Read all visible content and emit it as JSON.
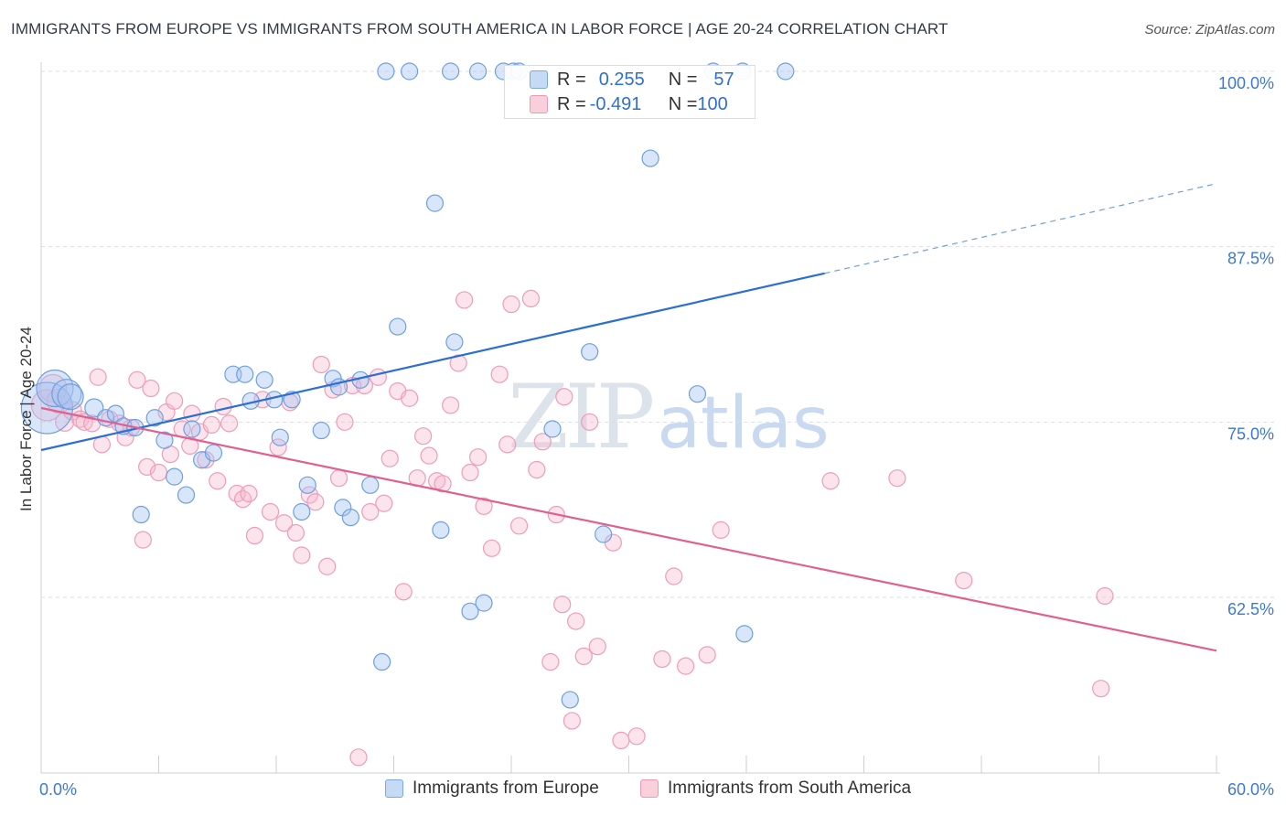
{
  "header": {
    "title": "IMMIGRANTS FROM EUROPE VS IMMIGRANTS FROM SOUTH AMERICA IN LABOR FORCE | AGE 20-24 CORRELATION CHART",
    "source": "Source: ZipAtlas.com"
  },
  "watermark": {
    "zip": "ZIP",
    "atlas": "atlas"
  },
  "stats": {
    "rows": [
      {
        "r_label": "R = ",
        "r_value": "0.255",
        "n_label": "N = ",
        "n_value": "57"
      },
      {
        "r_label": "R = ",
        "r_value": "-0.491",
        "n_label": "N = ",
        "n_value": "100"
      }
    ]
  },
  "legend": {
    "europe": "Immigrants from Europe",
    "south_america": "Immigrants from South America"
  },
  "chart_data": {
    "type": "scatter",
    "title": "IMMIGRANTS FROM EUROPE VS IMMIGRANTS FROM SOUTH AMERICA IN LABOR FORCE | AGE 20-24 CORRELATION CHART",
    "xlabel": "",
    "ylabel": "In Labor Force | Age 20-24",
    "xlim": [
      0,
      60
    ],
    "ylim": [
      51,
      101.5
    ],
    "x_tick_labels": [
      "0.0%",
      "60.0%"
    ],
    "y_ticks": [
      62.5,
      75.0,
      87.5,
      100.0
    ],
    "y_tick_labels": [
      "62.5%",
      "75.0%",
      "87.5%",
      "100.0%"
    ],
    "grid": true,
    "legend_position": "bottom",
    "colors": {
      "europe": "#6fa3e6",
      "south_america": "#ee93b1",
      "europe_line": "#2a6fd1",
      "south_america_line": "#e0608e",
      "tick_text": "#3e78d6"
    },
    "series": [
      {
        "name": "Immigrants from Europe",
        "trend": {
          "x": [
            0,
            40
          ],
          "y": [
            73.0,
            85.6
          ],
          "dashed_to": {
            "x": 60,
            "y": 92.0
          }
        },
        "points": [
          {
            "x": 0.3,
            "y": 76.0,
            "s": 28
          },
          {
            "x": 0.7,
            "y": 77.4,
            "s": 20
          },
          {
            "x": 1.3,
            "y": 77.0,
            "s": 16
          },
          {
            "x": 1.5,
            "y": 76.8,
            "s": 14
          },
          {
            "x": 2.7,
            "y": 76.0,
            "s": 10
          },
          {
            "x": 3.3,
            "y": 75.3,
            "s": 9
          },
          {
            "x": 3.8,
            "y": 75.6,
            "s": 9
          },
          {
            "x": 4.2,
            "y": 74.7,
            "s": 9
          },
          {
            "x": 4.8,
            "y": 74.6,
            "s": 9
          },
          {
            "x": 5.1,
            "y": 68.4,
            "s": 9
          },
          {
            "x": 5.8,
            "y": 75.3,
            "s": 9
          },
          {
            "x": 6.3,
            "y": 73.7,
            "s": 9
          },
          {
            "x": 6.8,
            "y": 71.1,
            "s": 9
          },
          {
            "x": 7.4,
            "y": 69.8,
            "s": 9
          },
          {
            "x": 7.7,
            "y": 74.5,
            "s": 9
          },
          {
            "x": 8.2,
            "y": 72.3,
            "s": 9
          },
          {
            "x": 8.8,
            "y": 72.8,
            "s": 9
          },
          {
            "x": 9.8,
            "y": 78.4,
            "s": 9
          },
          {
            "x": 10.4,
            "y": 78.4,
            "s": 9
          },
          {
            "x": 10.7,
            "y": 76.5,
            "s": 9
          },
          {
            "x": 11.4,
            "y": 78.0,
            "s": 9
          },
          {
            "x": 11.9,
            "y": 76.6,
            "s": 9
          },
          {
            "x": 12.2,
            "y": 73.9,
            "s": 9
          },
          {
            "x": 12.8,
            "y": 76.6,
            "s": 9
          },
          {
            "x": 13.3,
            "y": 68.6,
            "s": 9
          },
          {
            "x": 13.6,
            "y": 70.5,
            "s": 9
          },
          {
            "x": 14.3,
            "y": 74.4,
            "s": 9
          },
          {
            "x": 14.9,
            "y": 78.1,
            "s": 9
          },
          {
            "x": 15.2,
            "y": 77.5,
            "s": 9
          },
          {
            "x": 15.4,
            "y": 68.9,
            "s": 9
          },
          {
            "x": 15.8,
            "y": 68.2,
            "s": 9
          },
          {
            "x": 16.3,
            "y": 78.0,
            "s": 9
          },
          {
            "x": 16.8,
            "y": 70.5,
            "s": 9
          },
          {
            "x": 17.4,
            "y": 57.9,
            "s": 9
          },
          {
            "x": 18.2,
            "y": 81.8,
            "s": 9
          },
          {
            "x": 17.6,
            "y": 100.0,
            "s": 9
          },
          {
            "x": 18.8,
            "y": 100.0,
            "s": 9
          },
          {
            "x": 20.1,
            "y": 90.6,
            "s": 9
          },
          {
            "x": 20.4,
            "y": 67.3,
            "s": 9
          },
          {
            "x": 20.9,
            "y": 100.0,
            "s": 9
          },
          {
            "x": 21.1,
            "y": 80.7,
            "s": 9
          },
          {
            "x": 21.9,
            "y": 61.5,
            "s": 9
          },
          {
            "x": 22.3,
            "y": 100.0,
            "s": 9
          },
          {
            "x": 22.6,
            "y": 62.1,
            "s": 9
          },
          {
            "x": 23.6,
            "y": 100.0,
            "s": 9
          },
          {
            "x": 24.1,
            "y": 100.0,
            "s": 9
          },
          {
            "x": 24.4,
            "y": 100.0,
            "s": 9
          },
          {
            "x": 26.1,
            "y": 74.5,
            "s": 9
          },
          {
            "x": 27.0,
            "y": 55.2,
            "s": 9
          },
          {
            "x": 28.0,
            "y": 80.0,
            "s": 9
          },
          {
            "x": 28.7,
            "y": 67.0,
            "s": 9
          },
          {
            "x": 34.3,
            "y": 100.0,
            "s": 9
          },
          {
            "x": 35.8,
            "y": 100.0,
            "s": 9
          },
          {
            "x": 31.1,
            "y": 93.8,
            "s": 9
          },
          {
            "x": 33.5,
            "y": 77.0,
            "s": 9
          },
          {
            "x": 35.9,
            "y": 59.9,
            "s": 9
          },
          {
            "x": 38.0,
            "y": 100.0,
            "s": 9
          }
        ]
      },
      {
        "name": "Immigrants from South America",
        "trend": {
          "x": [
            0,
            60
          ],
          "y": [
            76.0,
            58.7
          ]
        },
        "points": [
          {
            "x": 0.3,
            "y": 76.2,
            "s": 17
          },
          {
            "x": 0.6,
            "y": 77.4,
            "s": 15
          },
          {
            "x": 0.9,
            "y": 76.5,
            "s": 13
          },
          {
            "x": 1.2,
            "y": 75.0,
            "s": 10
          },
          {
            "x": 1.6,
            "y": 75.8,
            "s": 10
          },
          {
            "x": 2.0,
            "y": 75.2,
            "s": 9
          },
          {
            "x": 2.2,
            "y": 75.0,
            "s": 9
          },
          {
            "x": 2.6,
            "y": 74.9,
            "s": 9
          },
          {
            "x": 2.9,
            "y": 78.2,
            "s": 9
          },
          {
            "x": 3.1,
            "y": 73.4,
            "s": 9
          },
          {
            "x": 3.5,
            "y": 75.2,
            "s": 9
          },
          {
            "x": 4.0,
            "y": 74.9,
            "s": 9
          },
          {
            "x": 4.3,
            "y": 73.9,
            "s": 9
          },
          {
            "x": 4.6,
            "y": 74.6,
            "s": 9
          },
          {
            "x": 4.9,
            "y": 78.0,
            "s": 9
          },
          {
            "x": 5.2,
            "y": 66.6,
            "s": 9
          },
          {
            "x": 5.6,
            "y": 77.4,
            "s": 9
          },
          {
            "x": 5.4,
            "y": 71.8,
            "s": 9
          },
          {
            "x": 6.0,
            "y": 71.4,
            "s": 9
          },
          {
            "x": 6.4,
            "y": 75.7,
            "s": 9
          },
          {
            "x": 6.6,
            "y": 72.7,
            "s": 9
          },
          {
            "x": 6.8,
            "y": 76.5,
            "s": 9
          },
          {
            "x": 7.2,
            "y": 74.5,
            "s": 9
          },
          {
            "x": 7.6,
            "y": 73.3,
            "s": 9
          },
          {
            "x": 7.7,
            "y": 75.6,
            "s": 9
          },
          {
            "x": 8.1,
            "y": 74.3,
            "s": 9
          },
          {
            "x": 8.4,
            "y": 72.3,
            "s": 9
          },
          {
            "x": 8.7,
            "y": 74.8,
            "s": 9
          },
          {
            "x": 9.0,
            "y": 70.8,
            "s": 9
          },
          {
            "x": 9.3,
            "y": 76.1,
            "s": 9
          },
          {
            "x": 9.6,
            "y": 74.9,
            "s": 9
          },
          {
            "x": 10.0,
            "y": 69.9,
            "s": 9
          },
          {
            "x": 10.3,
            "y": 69.5,
            "s": 9
          },
          {
            "x": 10.6,
            "y": 69.9,
            "s": 9
          },
          {
            "x": 10.9,
            "y": 66.9,
            "s": 9
          },
          {
            "x": 11.3,
            "y": 76.6,
            "s": 9
          },
          {
            "x": 11.7,
            "y": 68.6,
            "s": 9
          },
          {
            "x": 12.1,
            "y": 73.2,
            "s": 9
          },
          {
            "x": 12.4,
            "y": 67.8,
            "s": 9
          },
          {
            "x": 12.7,
            "y": 76.4,
            "s": 9
          },
          {
            "x": 13.0,
            "y": 67.1,
            "s": 9
          },
          {
            "x": 13.3,
            "y": 65.5,
            "s": 9
          },
          {
            "x": 13.7,
            "y": 69.8,
            "s": 9
          },
          {
            "x": 14.0,
            "y": 69.3,
            "s": 9
          },
          {
            "x": 14.3,
            "y": 79.1,
            "s": 9
          },
          {
            "x": 14.6,
            "y": 64.7,
            "s": 9
          },
          {
            "x": 14.9,
            "y": 77.3,
            "s": 9
          },
          {
            "x": 15.2,
            "y": 71.0,
            "s": 9
          },
          {
            "x": 15.5,
            "y": 75.0,
            "s": 9
          },
          {
            "x": 15.9,
            "y": 77.6,
            "s": 9
          },
          {
            "x": 16.2,
            "y": 51.1,
            "s": 9
          },
          {
            "x": 16.5,
            "y": 77.6,
            "s": 9
          },
          {
            "x": 16.8,
            "y": 68.6,
            "s": 9
          },
          {
            "x": 17.2,
            "y": 78.2,
            "s": 9
          },
          {
            "x": 17.5,
            "y": 69.2,
            "s": 9
          },
          {
            "x": 17.8,
            "y": 72.4,
            "s": 9
          },
          {
            "x": 18.2,
            "y": 77.2,
            "s": 9
          },
          {
            "x": 18.5,
            "y": 62.9,
            "s": 9
          },
          {
            "x": 18.8,
            "y": 76.7,
            "s": 9
          },
          {
            "x": 19.2,
            "y": 71.0,
            "s": 9
          },
          {
            "x": 19.5,
            "y": 74.0,
            "s": 9
          },
          {
            "x": 19.8,
            "y": 72.6,
            "s": 9
          },
          {
            "x": 20.2,
            "y": 70.8,
            "s": 9
          },
          {
            "x": 20.5,
            "y": 70.6,
            "s": 9
          },
          {
            "x": 20.9,
            "y": 76.2,
            "s": 9
          },
          {
            "x": 21.3,
            "y": 79.2,
            "s": 9
          },
          {
            "x": 21.6,
            "y": 83.7,
            "s": 9
          },
          {
            "x": 21.9,
            "y": 71.4,
            "s": 9
          },
          {
            "x": 22.3,
            "y": 72.5,
            "s": 9
          },
          {
            "x": 22.6,
            "y": 69.0,
            "s": 9
          },
          {
            "x": 23.0,
            "y": 66.0,
            "s": 9
          },
          {
            "x": 23.4,
            "y": 78.4,
            "s": 9
          },
          {
            "x": 23.8,
            "y": 73.4,
            "s": 9
          },
          {
            "x": 24.0,
            "y": 83.4,
            "s": 9
          },
          {
            "x": 24.4,
            "y": 67.6,
            "s": 9
          },
          {
            "x": 25.0,
            "y": 83.8,
            "s": 9
          },
          {
            "x": 25.3,
            "y": 71.6,
            "s": 9
          },
          {
            "x": 25.6,
            "y": 73.6,
            "s": 9
          },
          {
            "x": 26.0,
            "y": 57.9,
            "s": 9
          },
          {
            "x": 26.3,
            "y": 68.4,
            "s": 9
          },
          {
            "x": 26.7,
            "y": 76.8,
            "s": 9
          },
          {
            "x": 27.1,
            "y": 53.7,
            "s": 9
          },
          {
            "x": 27.3,
            "y": 60.8,
            "s": 9
          },
          {
            "x": 27.7,
            "y": 58.3,
            "s": 9
          },
          {
            "x": 28.0,
            "y": 75.0,
            "s": 9
          },
          {
            "x": 28.4,
            "y": 59.0,
            "s": 9
          },
          {
            "x": 29.2,
            "y": 66.4,
            "s": 9
          },
          {
            "x": 29.6,
            "y": 52.3,
            "s": 9
          },
          {
            "x": 31.7,
            "y": 58.1,
            "s": 9
          },
          {
            "x": 32.3,
            "y": 64.0,
            "s": 9
          },
          {
            "x": 32.9,
            "y": 57.6,
            "s": 9
          },
          {
            "x": 34.0,
            "y": 58.4,
            "s": 9
          },
          {
            "x": 34.7,
            "y": 67.3,
            "s": 9
          },
          {
            "x": 40.3,
            "y": 70.8,
            "s": 9
          },
          {
            "x": 43.7,
            "y": 71.0,
            "s": 9
          },
          {
            "x": 47.1,
            "y": 63.7,
            "s": 9
          },
          {
            "x": 54.3,
            "y": 62.6,
            "s": 9
          },
          {
            "x": 54.1,
            "y": 56.0,
            "s": 9
          },
          {
            "x": 30.4,
            "y": 52.6,
            "s": 9
          },
          {
            "x": 26.6,
            "y": 62.0,
            "s": 9
          }
        ]
      }
    ]
  }
}
